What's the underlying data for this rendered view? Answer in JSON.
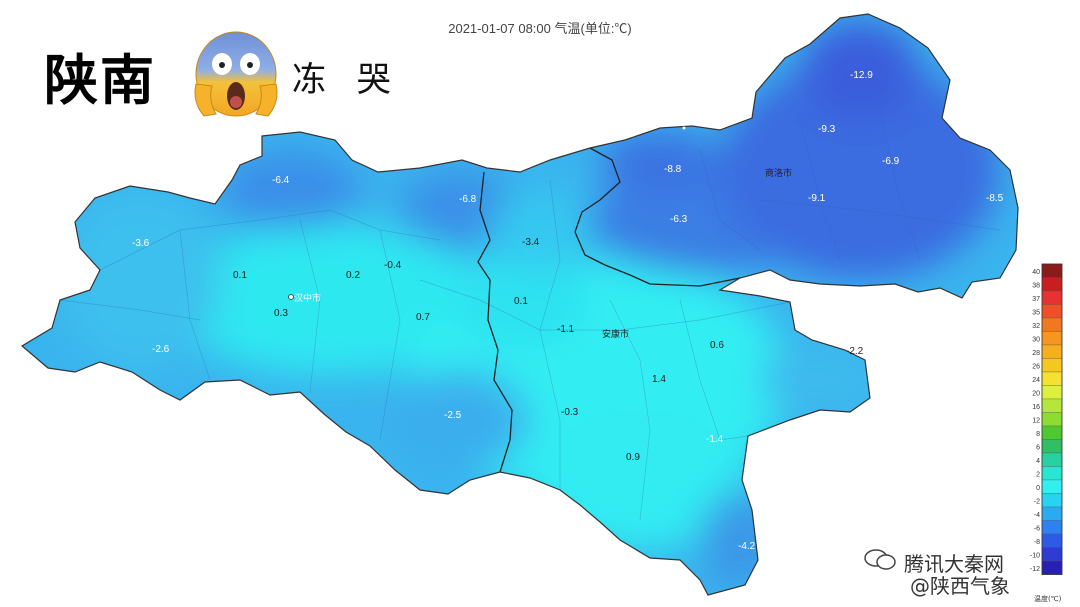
{
  "map": {
    "title": "2021-01-07 08:00 气温(单位:℃)",
    "headline": "陕南",
    "handwritten": "冻 哭",
    "emoji": "face-screaming-in-fear-emoji",
    "colors": {
      "warm_cyan": "#33eef2",
      "cyan": "#2ed6ef",
      "light_blue": "#3cb8ee",
      "mid_blue": "#3a8ee8",
      "deep_blue": "#3a6ee0",
      "outline": "#333333"
    },
    "cities": [
      {
        "name": "汉中市"
      },
      {
        "name": "安康市"
      },
      {
        "name": "商洛市"
      }
    ],
    "temperatures": [
      "-12.9",
      "-9.3",
      "-6.9",
      "-8.5",
      "-8.8",
      "-6.3",
      "-9.1",
      "-6.4",
      "-6.8",
      "-3.4",
      "-3.6",
      "0.1",
      "0.2",
      "-0.4",
      "0.3",
      "0.7",
      "0.1",
      "-1.1",
      "0.6",
      "-2.2",
      "-2.6",
      "1.4",
      "-2.5",
      "-0.3",
      "-1.4",
      "0.9",
      "-4.2"
    ]
  },
  "legend": {
    "title": "温度(℃)",
    "ticks": [
      "40",
      "38",
      "37",
      "35",
      "32",
      "30",
      "28",
      "26",
      "24",
      "20",
      "16",
      "12",
      "8",
      "6",
      "4",
      "2",
      "0",
      "-2",
      "-4",
      "-6",
      "-8",
      "-10",
      "-12"
    ],
    "colors": [
      "#8b1a1a",
      "#c81e1e",
      "#e63232",
      "#f05028",
      "#f0781e",
      "#f5961e",
      "#f5af1e",
      "#f5c81e",
      "#f5e132",
      "#dcf03c",
      "#b4e63c",
      "#8cdc32",
      "#50c832",
      "#32be64",
      "#28d2a0",
      "#28e6d2",
      "#32f0f0",
      "#28d2f0",
      "#2aaaf0",
      "#2d82f0",
      "#2d5ae6",
      "#2d3cd2",
      "#2820b4"
    ]
  },
  "watermark": {
    "line1": "腾讯大秦网",
    "line2": "@陕西气象"
  }
}
